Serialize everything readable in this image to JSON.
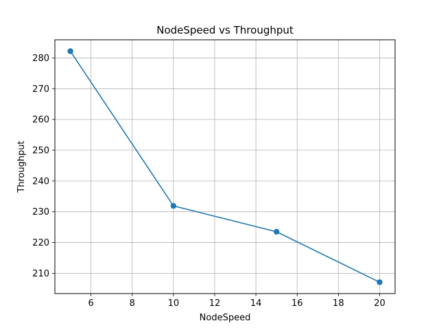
{
  "chart_data": {
    "type": "line",
    "title": "NodeSpeed vs Throughput",
    "xlabel": "NodeSpeed",
    "ylabel": "Throughput",
    "x": [
      5,
      10,
      15,
      20
    ],
    "series": [
      {
        "values": [
          282.2,
          231.9,
          223.5,
          207.1
        ],
        "color": "#1f77b4",
        "marker": "circle"
      }
    ],
    "xlim": [
      4.25,
      20.75
    ],
    "ylim": [
      203.4,
      285.9
    ],
    "xticks": [
      6,
      8,
      10,
      12,
      14,
      16,
      18,
      20
    ],
    "yticks": [
      210,
      220,
      230,
      240,
      250,
      260,
      270,
      280
    ],
    "grid": true,
    "legend": false
  }
}
